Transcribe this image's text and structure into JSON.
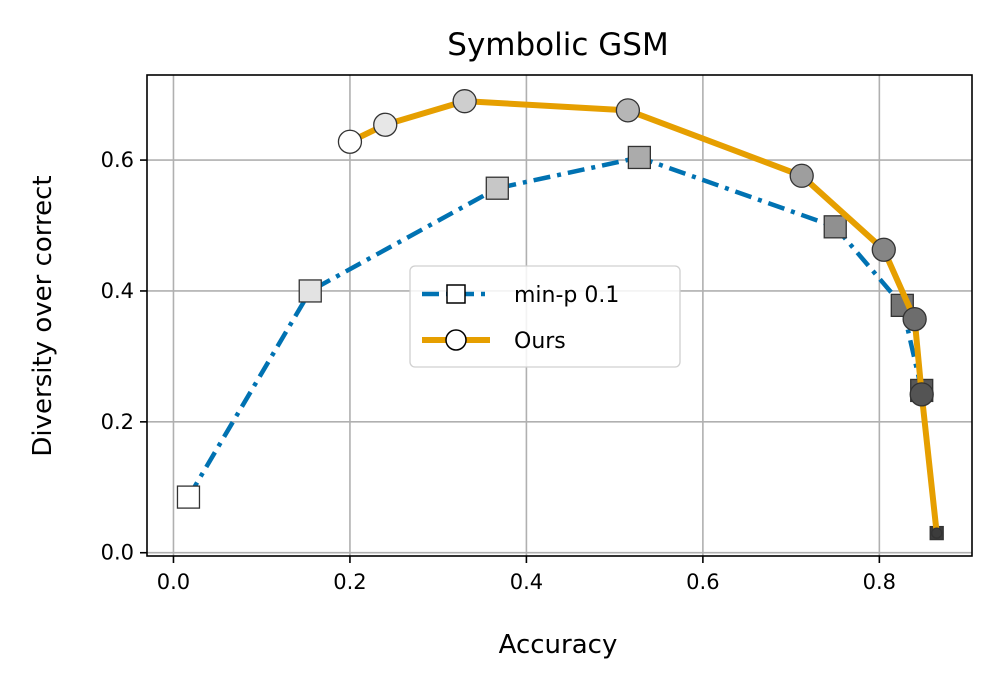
{
  "chart_data": {
    "type": "line",
    "title": "Symbolic GSM",
    "xlabel": "Accuracy",
    "ylabel": "Diversity over correct",
    "xlim": [
      -0.03,
      0.905
    ],
    "ylim": [
      -0.005,
      0.73
    ],
    "xticks": [
      0.0,
      0.2,
      0.4,
      0.6,
      0.8
    ],
    "yticks": [
      0.0,
      0.2,
      0.4,
      0.6
    ],
    "xtick_labels": [
      "0.0",
      "0.2",
      "0.4",
      "0.6",
      "0.8"
    ],
    "ytick_labels": [
      "0.0",
      "0.2",
      "0.4",
      "0.6"
    ],
    "grid": true,
    "legend_position": "center",
    "series": [
      {
        "name": "min-p 0.1",
        "color": "#0072b2",
        "line_style": "dashdot",
        "marker": "square",
        "x": [
          0.017,
          0.155,
          0.367,
          0.528,
          0.75,
          0.826,
          0.848,
          0.865
        ],
        "y": [
          0.085,
          0.4,
          0.557,
          0.604,
          0.498,
          0.378,
          0.248,
          0.03
        ]
      },
      {
        "name": "Ours",
        "color": "#e69f00",
        "line_style": "solid",
        "marker": "circle",
        "x": [
          0.2,
          0.24,
          0.33,
          0.515,
          0.712,
          0.805,
          0.84,
          0.848,
          0.865
        ],
        "y": [
          0.628,
          0.654,
          0.69,
          0.676,
          0.576,
          0.463,
          0.357,
          0.242,
          0.03
        ]
      }
    ]
  }
}
